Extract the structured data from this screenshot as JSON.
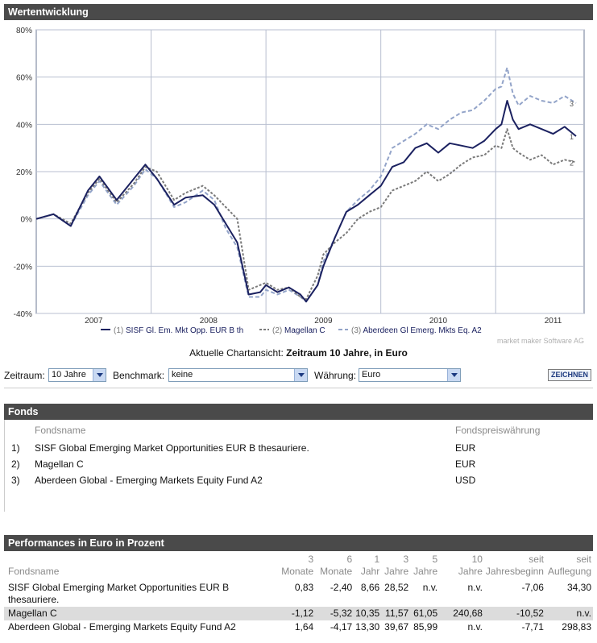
{
  "header_chart": "Wertentwicklung",
  "chart_data": {
    "type": "line",
    "title": "Wertentwicklung",
    "ylabel": "",
    "ylim": [
      -40,
      80
    ],
    "yticks": [
      "80%",
      "60%",
      "40%",
      "20%",
      "0%",
      "-20%",
      "-40%"
    ],
    "xticks": [
      "2007",
      "2008",
      "2009",
      "2010",
      "2011"
    ],
    "x": [
      2006.5,
      2006.65,
      2006.8,
      2006.95,
      2007.05,
      2007.2,
      2007.35,
      2007.45,
      2007.55,
      2007.7,
      2007.8,
      2007.95,
      2008.05,
      2008.15,
      2008.25,
      2008.35,
      2008.45,
      2008.5,
      2008.6,
      2008.7,
      2008.8,
      2008.85,
      2008.95,
      2009.0,
      2009.1,
      2009.2,
      2009.3,
      2009.4,
      2009.5,
      2009.6,
      2009.7,
      2009.8,
      2009.9,
      2010.0,
      2010.1,
      2010.2,
      2010.3,
      2010.4,
      2010.5,
      2010.55,
      2010.6,
      2010.65,
      2010.7,
      2010.8,
      2010.9,
      2011.0,
      2011.1,
      2011.2
    ],
    "series": [
      {
        "name": "SISF Gl. Em. Mkt Opp. EUR B th",
        "index": "1",
        "color": "#1b2160",
        "values": [
          0,
          2,
          -3,
          12,
          18,
          8,
          17,
          23,
          17,
          6,
          9,
          10,
          6,
          -2,
          -10,
          -32,
          -31,
          -28,
          -31,
          -29,
          -32,
          -35,
          -28,
          -20,
          -8,
          3,
          6,
          10,
          14,
          22,
          24,
          30,
          32,
          28,
          32,
          31,
          30,
          33,
          38,
          40,
          50,
          42,
          38,
          40,
          38,
          36,
          39,
          35
        ]
      },
      {
        "name": "Magellan C",
        "index": "2",
        "color": "#7a7a7a",
        "values": [
          0,
          2,
          -2,
          11,
          17,
          7,
          15,
          22,
          20,
          8,
          11,
          14,
          10,
          5,
          0,
          -30,
          -28,
          -27,
          -30,
          -29,
          -33,
          -34,
          -24,
          -15,
          -10,
          -6,
          0,
          3,
          5,
          12,
          14,
          16,
          20,
          16,
          19,
          23,
          26,
          27,
          31,
          30,
          38,
          30,
          28,
          25,
          27,
          23,
          25,
          24
        ]
      },
      {
        "name": "Aberdeen Gl Emerg. Mkts Eq. A2",
        "index": "3",
        "color": "#93a4c9",
        "values": [
          0,
          2,
          -3,
          10,
          16,
          6,
          14,
          21,
          17,
          5,
          7,
          12,
          8,
          -4,
          -12,
          -33,
          -33,
          -30,
          -32,
          -30,
          -33,
          -35,
          -28,
          -18,
          -8,
          3,
          8,
          12,
          18,
          30,
          33,
          36,
          40,
          38,
          42,
          45,
          46,
          50,
          55,
          56,
          64,
          53,
          48,
          52,
          50,
          49,
          52,
          49
        ]
      }
    ]
  },
  "legend": [
    {
      "prefix": "(1)",
      "label": "SISF Gl. Em. Mkt Opp. EUR B th"
    },
    {
      "prefix": "(2)",
      "label": "Magellan C"
    },
    {
      "prefix": "(3)",
      "label": "Aberdeen Gl Emerg. Mkts Eq. A2"
    }
  ],
  "watermark": "market maker Software AG",
  "caption": {
    "prefix": "Aktuelle Chartansicht:",
    "value": "Zeitraum 10 Jahre, in Euro"
  },
  "controls": {
    "zeitraum_label": "Zeitraum:",
    "zeitraum_value": "10 Jahre",
    "benchmark_label": "Benchmark:",
    "benchmark_value": "keine",
    "waehrung_label": "Währung:",
    "waehrung_value": "Euro",
    "draw_button": "ZEICHNEN"
  },
  "fonds": {
    "title": "Fonds",
    "col_name": "Fondsname",
    "col_currency": "Fondspreiswährung",
    "rows": [
      {
        "num": "1)",
        "name": "SISF Global Emerging Market Opportunities EUR B thesauriere.",
        "currency": "EUR"
      },
      {
        "num": "2)",
        "name": "Magellan C",
        "currency": "EUR"
      },
      {
        "num": "3)",
        "name": "Aberdeen Global - Emerging Markets Equity Fund A2",
        "currency": "USD"
      }
    ]
  },
  "performance": {
    "title": "Performances in Euro in Prozent",
    "headers": {
      "name": "Fondsname",
      "m3": [
        "3",
        "Monate"
      ],
      "m6": [
        "6",
        "Monate"
      ],
      "y1": [
        "1",
        "Jahr"
      ],
      "y3": [
        "3",
        "Jahre"
      ],
      "y5": [
        "5",
        "Jahre"
      ],
      "y10": [
        "10",
        "Jahre"
      ],
      "ytd": [
        "seit",
        "Jahresbeginn"
      ],
      "since": [
        "seit",
        "Auflegung"
      ]
    },
    "rows": [
      {
        "name": "SISF Global Emerging Market Opportunities EUR B thesauriere.",
        "m3": "0,83",
        "m6": "-2,40",
        "y1": "8,66",
        "y3": "28,52",
        "y5": "n.v.",
        "y10": "n.v.",
        "ytd": "-7,06",
        "since": "34,30"
      },
      {
        "name": "Magellan C",
        "m3": "-1,12",
        "m6": "-5,32",
        "y1": "10,35",
        "y3": "11,57",
        "y5": "61,05",
        "y10": "240,68",
        "ytd": "-10,52",
        "since": "n.v."
      },
      {
        "name": "Aberdeen Global - Emerging Markets Equity Fund A2",
        "m3": "1,64",
        "m6": "-4,17",
        "y1": "13,30",
        "y3": "39,67",
        "y5": "85,99",
        "y10": "n.v.",
        "ytd": "-7,71",
        "since": "298,83"
      }
    ]
  }
}
